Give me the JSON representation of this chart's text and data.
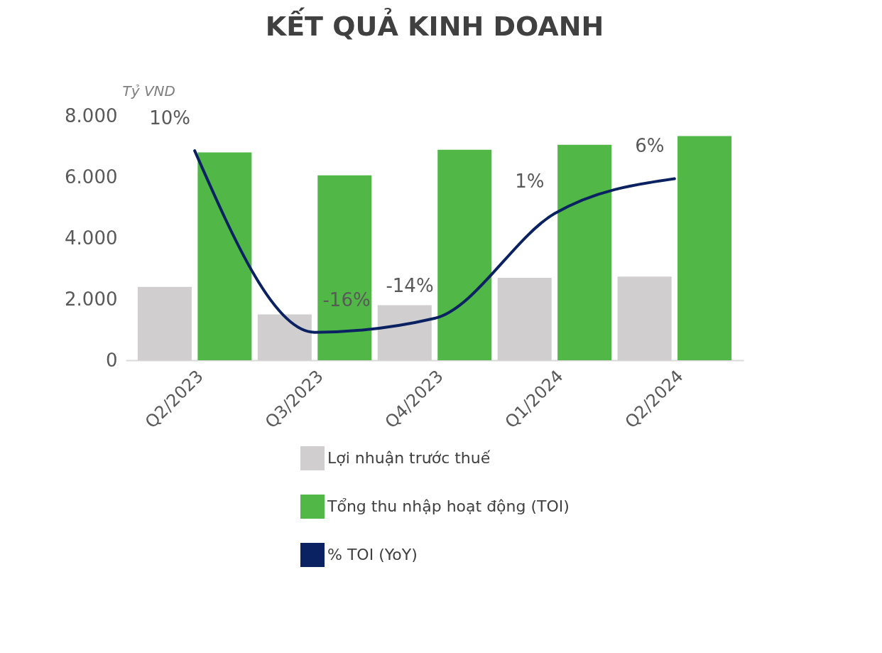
{
  "chart_data": {
    "type": "bar",
    "title": "KẾT QUẢ KINH DOANH",
    "ylabel": "Tỷ VND",
    "categories": [
      "Q2/2023",
      "Q3/2023",
      "Q4/2023",
      "Q1/2024",
      "Q2/2024"
    ],
    "series": [
      {
        "name": "Lợi nhuận trước thuế",
        "color": "#d0cecf",
        "values": [
          2400,
          1500,
          1800,
          2700,
          2740
        ]
      },
      {
        "name": "Tổng thu nhập hoạt động (TOI)",
        "color": "#51b848",
        "values": [
          6800,
          6050,
          6890,
          7050,
          7340
        ]
      },
      {
        "name": "% TOI (YoY)",
        "type": "line",
        "axis": "y2",
        "color": "#0b2262",
        "values": [
          10,
          -16,
          -14,
          1,
          6
        ],
        "value_labels": [
          "10%",
          "-16%",
          "-14%",
          "1%",
          "6%"
        ]
      }
    ],
    "ylim": [
      0,
      8000
    ],
    "yticks": [
      {
        "value": 0,
        "label": "0"
      },
      {
        "value": 2000,
        "label": "2.000"
      },
      {
        "value": 4000,
        "label": "4.000"
      },
      {
        "value": 6000,
        "label": "6.000"
      },
      {
        "value": 8000,
        "label": "8.000"
      }
    ],
    "grid": false,
    "legend": "bottom"
  }
}
